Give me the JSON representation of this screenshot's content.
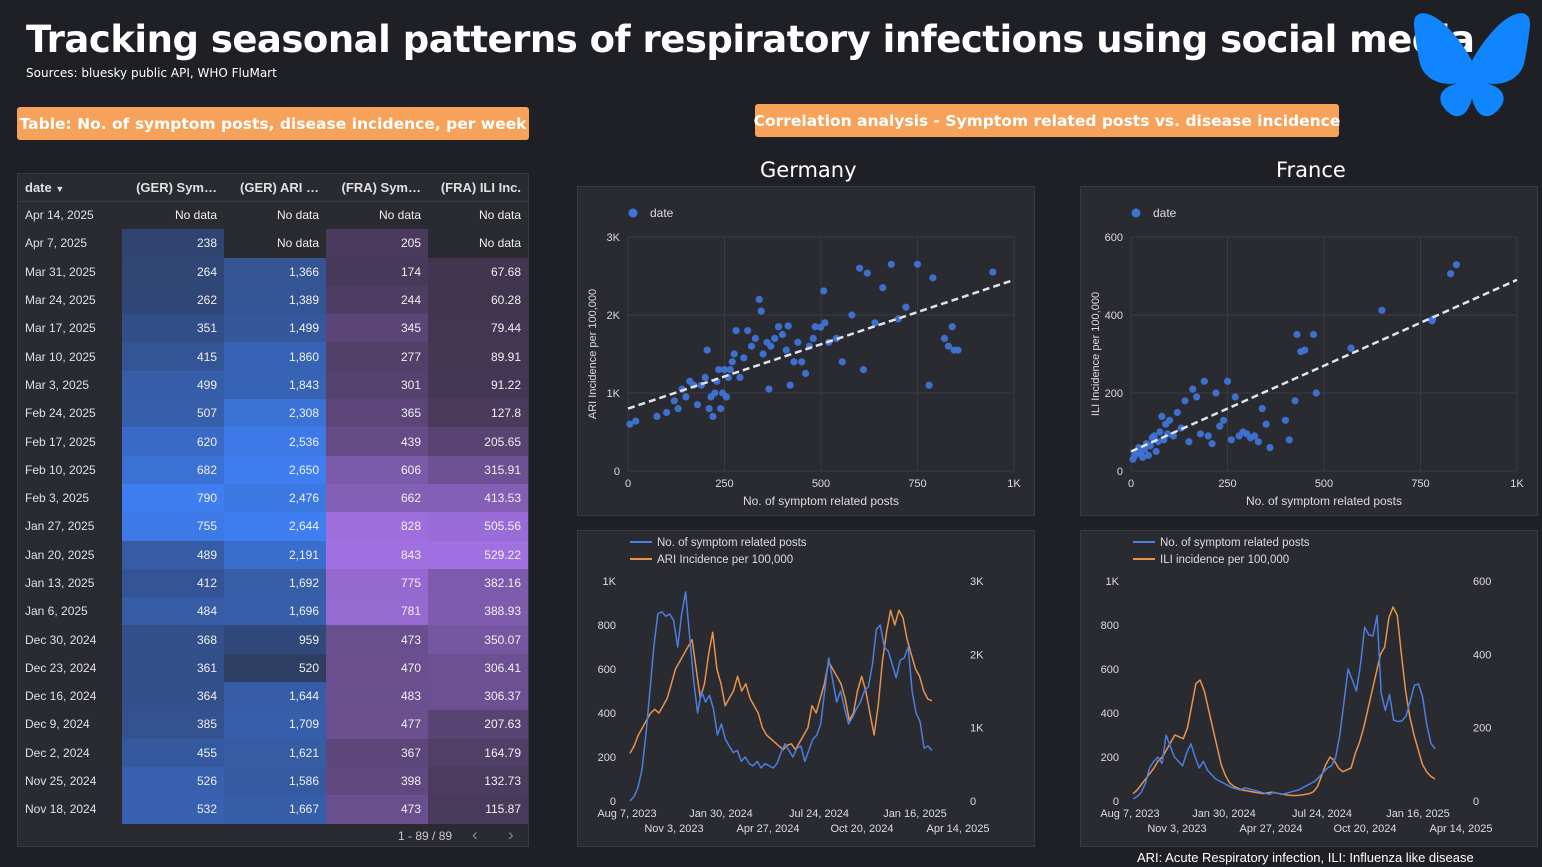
{
  "title": "Tracking seasonal patterns of respiratory infections using social media",
  "sources": "Sources: bluesky public API, WHO FluMart",
  "table_pill": "Table: No. of symptom posts, disease incidence, per week",
  "corr_pill": "Correlation analysis - Symptom related posts vs. disease incidence",
  "country_ger": "Germany",
  "country_fra": "France",
  "footnote": "ARI: Acute Respiratory infection, ILI: Influenza like disease",
  "table": {
    "headers": [
      "date",
      "(GER) Sym…",
      "(GER) ARI …",
      "(FRA) Sym…",
      "(FRA) ILI Inc."
    ],
    "sort_icon": "sort-desc-icon",
    "pagination": "1 - 89 / 89",
    "rows": [
      [
        "Apr 14, 2025",
        "No data",
        "No data",
        "No data",
        "No data"
      ],
      [
        "Apr 7, 2025",
        "238",
        "No data",
        "205",
        "No data"
      ],
      [
        "Mar 31, 2025",
        "264",
        "1,366",
        "174",
        "67.68"
      ],
      [
        "Mar 24, 2025",
        "262",
        "1,389",
        "244",
        "60.28"
      ],
      [
        "Mar 17, 2025",
        "351",
        "1,499",
        "345",
        "79.44"
      ],
      [
        "Mar 10, 2025",
        "415",
        "1,860",
        "277",
        "89.91"
      ],
      [
        "Mar 3, 2025",
        "499",
        "1,843",
        "301",
        "91.22"
      ],
      [
        "Feb 24, 2025",
        "507",
        "2,308",
        "365",
        "127.8"
      ],
      [
        "Feb 17, 2025",
        "620",
        "2,536",
        "439",
        "205.65"
      ],
      [
        "Feb 10, 2025",
        "682",
        "2,650",
        "606",
        "315.91"
      ],
      [
        "Feb 3, 2025",
        "790",
        "2,476",
        "662",
        "413.53"
      ],
      [
        "Jan 27, 2025",
        "755",
        "2,644",
        "828",
        "505.56"
      ],
      [
        "Jan 20, 2025",
        "489",
        "2,191",
        "843",
        "529.22"
      ],
      [
        "Jan 13, 2025",
        "412",
        "1,692",
        "775",
        "382.16"
      ],
      [
        "Jan 6, 2025",
        "484",
        "1,696",
        "781",
        "388.93"
      ],
      [
        "Dec 30, 2024",
        "368",
        "959",
        "473",
        "350.07"
      ],
      [
        "Dec 23, 2024",
        "361",
        "520",
        "470",
        "306.41"
      ],
      [
        "Dec 16, 2024",
        "364",
        "1,644",
        "483",
        "306.37"
      ],
      [
        "Dec 9, 2024",
        "385",
        "1,709",
        "477",
        "207.63"
      ],
      [
        "Dec 2, 2024",
        "455",
        "1,621",
        "367",
        "164.79"
      ],
      [
        "Nov 25, 2024",
        "526",
        "1,586",
        "398",
        "132.73"
      ],
      [
        "Nov 18, 2024",
        "532",
        "1,667",
        "473",
        "115.87"
      ]
    ]
  },
  "colors": {
    "background": "#1f2025",
    "panel": "#2a2b31",
    "accent_orange": "#f6a25a",
    "blue": "#4a7fe0",
    "scatter_blue": "#3f73d6",
    "trend": "#e0e4ee",
    "ger_scale_low": "#2c3550",
    "ger_scale_high": "#3e7ef0",
    "fra_scale_low": "#3a3145",
    "fra_scale_high": "#a070e0"
  },
  "chart_data": [
    {
      "type": "scatter",
      "name": "ger-scatter",
      "legend": "date",
      "xlabel": "No. of symptom related posts",
      "ylabel": "ARI Incidence per 100,000",
      "xlim": [
        0,
        1000
      ],
      "ylim": [
        0,
        3000
      ],
      "x_ticks": [
        "0",
        "250",
        "500",
        "750",
        "1K"
      ],
      "y_ticks": [
        "0",
        "1K",
        "2K",
        "3K"
      ],
      "trendline": [
        [
          0,
          800
        ],
        [
          1000,
          2450
        ]
      ],
      "points": [
        [
          5,
          600
        ],
        [
          20,
          640
        ],
        [
          75,
          700
        ],
        [
          100,
          750
        ],
        [
          120,
          900
        ],
        [
          130,
          800
        ],
        [
          140,
          1050
        ],
        [
          150,
          950
        ],
        [
          160,
          1150
        ],
        [
          170,
          1100
        ],
        [
          180,
          850
        ],
        [
          190,
          1100
        ],
        [
          200,
          1200
        ],
        [
          205,
          1550
        ],
        [
          210,
          800
        ],
        [
          215,
          950
        ],
        [
          220,
          700
        ],
        [
          225,
          1000
        ],
        [
          230,
          1150
        ],
        [
          235,
          1300
        ],
        [
          240,
          800
        ],
        [
          245,
          1000
        ],
        [
          250,
          1300
        ],
        [
          255,
          950
        ],
        [
          260,
          1200
        ],
        [
          265,
          1300
        ],
        [
          270,
          1400
        ],
        [
          275,
          1500
        ],
        [
          280,
          1800
        ],
        [
          290,
          1200
        ],
        [
          300,
          1450
        ],
        [
          310,
          1800
        ],
        [
          320,
          1600
        ],
        [
          330,
          1700
        ],
        [
          340,
          2200
        ],
        [
          345,
          2050
        ],
        [
          350,
          1500
        ],
        [
          360,
          1650
        ],
        [
          365,
          1050
        ],
        [
          370,
          1600
        ],
        [
          380,
          1700
        ],
        [
          390,
          1850
        ],
        [
          400,
          1750
        ],
        [
          410,
          1550
        ],
        [
          415,
          1860
        ],
        [
          420,
          1100
        ],
        [
          430,
          1400
        ],
        [
          440,
          1650
        ],
        [
          450,
          1400
        ],
        [
          460,
          1250
        ],
        [
          470,
          1600
        ],
        [
          480,
          1700
        ],
        [
          485,
          1850
        ],
        [
          499,
          1843
        ],
        [
          507,
          2308
        ],
        [
          510,
          1900
        ],
        [
          520,
          1650
        ],
        [
          540,
          1700
        ],
        [
          555,
          1400
        ],
        [
          580,
          2000
        ],
        [
          600,
          2600
        ],
        [
          610,
          1300
        ],
        [
          620,
          2536
        ],
        [
          640,
          1900
        ],
        [
          660,
          2350
        ],
        [
          682,
          2650
        ],
        [
          700,
          1950
        ],
        [
          720,
          2100
        ],
        [
          750,
          2650
        ],
        [
          780,
          1100
        ],
        [
          790,
          2476
        ],
        [
          820,
          1700
        ],
        [
          830,
          1600
        ],
        [
          840,
          1850
        ],
        [
          845,
          1550
        ],
        [
          855,
          1550
        ],
        [
          945,
          2550
        ]
      ]
    },
    {
      "type": "scatter",
      "name": "fra-scatter",
      "legend": "date",
      "xlabel": "No. of symptom related posts",
      "ylabel": "ILI Incidence per 100,000",
      "xlim": [
        0,
        1000
      ],
      "ylim": [
        0,
        600
      ],
      "x_ticks": [
        "0",
        "250",
        "500",
        "750",
        "1K"
      ],
      "y_ticks": [
        "0",
        "200",
        "400",
        "600"
      ],
      "trendline": [
        [
          0,
          50
        ],
        [
          1000,
          490
        ]
      ],
      "points": [
        [
          5,
          30
        ],
        [
          10,
          40
        ],
        [
          15,
          50
        ],
        [
          20,
          60
        ],
        [
          25,
          45
        ],
        [
          30,
          35
        ],
        [
          35,
          55
        ],
        [
          40,
          70
        ],
        [
          45,
          40
        ],
        [
          50,
          65
        ],
        [
          55,
          85
        ],
        [
          60,
          90
        ],
        [
          65,
          50
        ],
        [
          70,
          75
        ],
        [
          75,
          100
        ],
        [
          80,
          140
        ],
        [
          85,
          80
        ],
        [
          90,
          120
        ],
        [
          95,
          95
        ],
        [
          100,
          130
        ],
        [
          110,
          90
        ],
        [
          120,
          150
        ],
        [
          130,
          110
        ],
        [
          140,
          180
        ],
        [
          150,
          75
        ],
        [
          160,
          210
        ],
        [
          170,
          190
        ],
        [
          180,
          95
        ],
        [
          190,
          230
        ],
        [
          200,
          90
        ],
        [
          210,
          70
        ],
        [
          220,
          200
        ],
        [
          230,
          115
        ],
        [
          240,
          130
        ],
        [
          250,
          230
        ],
        [
          260,
          80
        ],
        [
          270,
          190
        ],
        [
          280,
          90
        ],
        [
          290,
          100
        ],
        [
          300,
          95
        ],
        [
          310,
          85
        ],
        [
          320,
          90
        ],
        [
          330,
          75
        ],
        [
          340,
          160
        ],
        [
          350,
          120
        ],
        [
          360,
          60
        ],
        [
          400,
          130
        ],
        [
          410,
          80
        ],
        [
          425,
          180
        ],
        [
          430,
          350
        ],
        [
          440,
          306
        ],
        [
          450,
          310
        ],
        [
          473,
          350
        ],
        [
          480,
          200
        ],
        [
          570,
          315
        ],
        [
          650,
          412
        ],
        [
          780,
          385
        ],
        [
          781,
          389
        ],
        [
          828,
          506
        ],
        [
          843,
          529
        ]
      ]
    },
    {
      "type": "line",
      "name": "ger-timeseries",
      "series": [
        {
          "name": "No. of symptom related posts",
          "axis": "left",
          "color": "#4a7fe0"
        },
        {
          "name": "ARI Incidence per 100,000",
          "axis": "right",
          "color": "#e8924a"
        }
      ],
      "left_ylim": [
        0,
        1000
      ],
      "right_ylim": [
        0,
        3000
      ],
      "left_ticks": [
        "0",
        "200",
        "400",
        "600",
        "800",
        "1K"
      ],
      "right_ticks": [
        "0",
        "1K",
        "2K",
        "3K"
      ],
      "x_ticks_top": [
        "Aug 7, 2023",
        "Jan 30, 2024",
        "Jul 24, 2024",
        "Jan 16, 2025"
      ],
      "x_ticks_bottom": [
        "Nov 3, 2023",
        "Apr 27, 2024",
        "Oct 20, 2024",
        "Apr 14, 2025"
      ],
      "posts": [
        0,
        20,
        60,
        140,
        300,
        500,
        700,
        850,
        860,
        840,
        850,
        820,
        700,
        850,
        950,
        750,
        550,
        400,
        500,
        450,
        480,
        420,
        300,
        350,
        280,
        250,
        220,
        230,
        180,
        200,
        170,
        160,
        180,
        150,
        170,
        160,
        150,
        170,
        220,
        260,
        230,
        200,
        240,
        250,
        180,
        230,
        280,
        300,
        350,
        500,
        650,
        550,
        450,
        500,
        420,
        350,
        380,
        420,
        450,
        500,
        520,
        620,
        780,
        800,
        700,
        680,
        620,
        560,
        640,
        650,
        700,
        500,
        400,
        360,
        240,
        250,
        230
      ],
      "incidence": [
        650,
        750,
        900,
        1000,
        1100,
        1200,
        1250,
        1200,
        1300,
        1400,
        1600,
        1800,
        1900,
        2000,
        2100,
        2200,
        1800,
        1400,
        1600,
        2000,
        2300,
        1800,
        1600,
        1300,
        1400,
        1500,
        1700,
        1500,
        1600,
        1400,
        1300,
        1200,
        1000,
        900,
        850,
        800,
        750,
        700,
        760,
        780,
        700,
        800,
        900,
        1000,
        1300,
        1200,
        1400,
        1600,
        1900,
        1800,
        1700,
        1600,
        1400,
        1100,
        1200,
        1500,
        1700,
        1500,
        1200,
        900,
        1300,
        1900,
        2300,
        2600,
        2400,
        2600,
        2500,
        2200,
        2000,
        1800,
        1700,
        1500,
        1390,
        1366
      ],
      "incidence_x_offset": 0
    },
    {
      "type": "line",
      "name": "fra-timeseries",
      "series": [
        {
          "name": "No. of symptom related posts",
          "axis": "left",
          "color": "#4a7fe0"
        },
        {
          "name": "ILI incidence per 100,000",
          "axis": "right",
          "color": "#e8924a"
        }
      ],
      "left_ylim": [
        0,
        1000
      ],
      "right_ylim": [
        0,
        600
      ],
      "left_ticks": [
        "0",
        "200",
        "400",
        "600",
        "800",
        "1K"
      ],
      "right_ticks": [
        "0",
        "200",
        "400",
        "600"
      ],
      "x_ticks_top": [
        "Aug 7, 2023",
        "Jan 30, 2024",
        "Jul 24, 2024",
        "Jan 16, 2025"
      ],
      "x_ticks_bottom": [
        "Nov 3, 2023",
        "Apr 27, 2024",
        "Oct 20, 2024",
        "Apr 14, 2025"
      ],
      "posts": [
        10,
        20,
        40,
        80,
        150,
        180,
        200,
        170,
        300,
        250,
        200,
        180,
        160,
        220,
        260,
        200,
        150,
        180,
        140,
        120,
        100,
        90,
        80,
        70,
        60,
        55,
        50,
        60,
        55,
        50,
        45,
        40,
        35,
        30,
        40,
        35,
        30,
        35,
        40,
        45,
        50,
        60,
        70,
        80,
        90,
        110,
        130,
        150,
        160,
        200,
        300,
        450,
        600,
        550,
        500,
        620,
        790,
        755,
        750,
        843,
        489,
        412,
        484,
        368,
        361,
        364,
        385,
        455,
        526,
        532,
        473,
        350,
        262,
        238
      ],
      "incidence": [
        20,
        30,
        45,
        60,
        75,
        90,
        110,
        120,
        140,
        160,
        180,
        175,
        170,
        200,
        260,
        320,
        330,
        300,
        250,
        200,
        150,
        100,
        70,
        50,
        40,
        35,
        30,
        28,
        26,
        24,
        22,
        20,
        22,
        24,
        22,
        20,
        18,
        16,
        15,
        15,
        16,
        18,
        20,
        25,
        40,
        70,
        100,
        120,
        110,
        90,
        80,
        85,
        90,
        130,
        160,
        200,
        250,
        300,
        350,
        400,
        420,
        500,
        529,
        506,
        400,
        300,
        230,
        180,
        140,
        100,
        80,
        67,
        60
      ]
    }
  ]
}
